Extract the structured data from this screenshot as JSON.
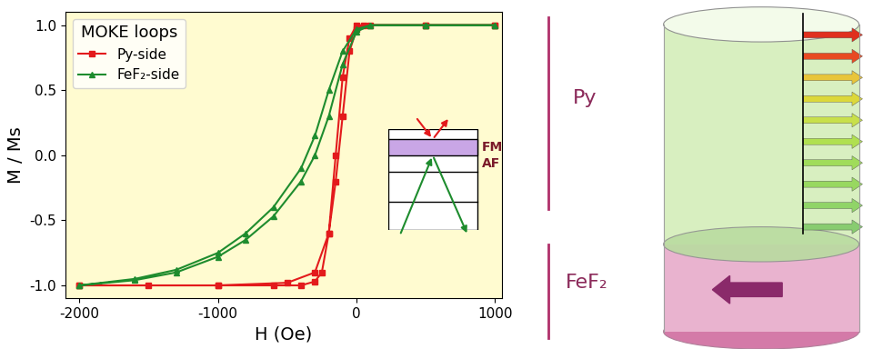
{
  "chart_data": {
    "type": "line",
    "x_label": "H (Oe)",
    "y_label": "M / Ms",
    "legend_title": "MOKE loops",
    "legend": "upper left",
    "annotations": [
      "FM",
      "AF"
    ],
    "xlim": [
      -2100,
      1050
    ],
    "xticks": [
      -2000,
      -1000,
      0,
      1000
    ],
    "ylim": [
      -1.1,
      1.1
    ],
    "yticks": [
      -1.0,
      -0.5,
      0.0,
      0.5,
      1.0
    ],
    "grid": false,
    "series": [
      {
        "name": "Py-side",
        "color": "#e31a1c",
        "marker": "square",
        "line_style": "solid",
        "x": [
          1000,
          500,
          100,
          0,
          -50,
          -100,
          -150,
          -200,
          -250,
          -300,
          -400,
          -600,
          -1000,
          -1500,
          -2000,
          -2000,
          -1000,
          -500,
          -300,
          -200,
          -150,
          -100,
          -50,
          0,
          50,
          500,
          1000
        ],
        "values": [
          1.0,
          1.0,
          1.0,
          1.0,
          0.9,
          0.6,
          0.0,
          -0.6,
          -0.9,
          -0.97,
          -1.0,
          -1.0,
          -1.0,
          -1.0,
          -1.0,
          -1.0,
          -1.0,
          -0.98,
          -0.9,
          -0.6,
          -0.2,
          0.3,
          0.8,
          0.97,
          1.0,
          1.0,
          1.0
        ]
      },
      {
        "name": "FeF₂-side",
        "color": "#1e8c2e",
        "marker": "triangle",
        "line_style": "solid",
        "x": [
          1000,
          500,
          100,
          0,
          -100,
          -200,
          -300,
          -400,
          -600,
          -800,
          -1000,
          -1300,
          -1600,
          -2000,
          -2000,
          -1600,
          -1300,
          -1000,
          -800,
          -600,
          -400,
          -300,
          -200,
          -100,
          0,
          100,
          500,
          1000
        ],
        "values": [
          1.0,
          1.0,
          1.0,
          0.97,
          0.8,
          0.5,
          0.15,
          -0.1,
          -0.4,
          -0.6,
          -0.75,
          -0.88,
          -0.95,
          -1.0,
          -1.0,
          -0.96,
          -0.9,
          -0.78,
          -0.65,
          -0.47,
          -0.2,
          0.0,
          0.3,
          0.7,
          0.95,
          1.0,
          1.0,
          1.0
        ]
      }
    ]
  },
  "diagram": {
    "labels": [
      "Py",
      "FeF₂"
    ]
  }
}
